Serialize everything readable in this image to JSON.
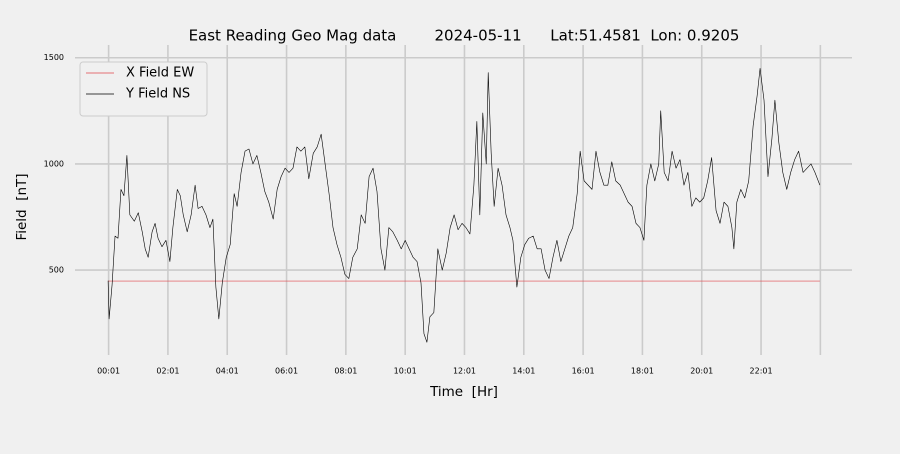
{
  "chart_data": {
    "type": "line",
    "title": "East Reading Geo Mag data        2024-05-11      Lat:51.4581  Lon: 0.9205",
    "x_label": "Time  [Hr]",
    "y_label": "Field  [nT]",
    "xlim": [
      -67,
      1505
    ],
    "ylim": [
      100,
      1560
    ],
    "xticks": [
      {
        "value": 1,
        "label": "00:01"
      },
      {
        "value": 121,
        "label": "02:01"
      },
      {
        "value": 241,
        "label": "04:01"
      },
      {
        "value": 361,
        "label": "06:01"
      },
      {
        "value": 481,
        "label": "08:01"
      },
      {
        "value": 601,
        "label": "10:01"
      },
      {
        "value": 721,
        "label": "12:01"
      },
      {
        "value": 841,
        "label": "14:01"
      },
      {
        "value": 961,
        "label": "16:01"
      },
      {
        "value": 1081,
        "label": "18:01"
      },
      {
        "value": 1201,
        "label": "20:01"
      },
      {
        "value": 1321,
        "label": "22:01"
      },
      {
        "value": 1441,
        "label": null
      }
    ],
    "yticks": [
      500,
      1000,
      1500
    ],
    "grid": true,
    "legend": "upper left",
    "series": [
      {
        "name": "X Field EW",
        "color": "#e0474c",
        "x": [
          0,
          1440
        ],
        "values": [
          448,
          448
        ]
      },
      {
        "name": "Y Field NS",
        "color": "#000000",
        "x": [
          0,
          2,
          8,
          14,
          20,
          26,
          32,
          38,
          44,
          53,
          61,
          69,
          75,
          81,
          89,
          95,
          101,
          109,
          117,
          125,
          131,
          140,
          146,
          152,
          160,
          168,
          176,
          182,
          190,
          198,
          206,
          212,
          218,
          224,
          231,
          239,
          247,
          255,
          261,
          269,
          277,
          285,
          293,
          301,
          309,
          317,
          325,
          334,
          342,
          350,
          358,
          366,
          374,
          382,
          390,
          398,
          406,
          415,
          423,
          431,
          439,
          447,
          455,
          463,
          471,
          479,
          487,
          495,
          504,
          512,
          520,
          528,
          536,
          544,
          552,
          560,
          568,
          576,
          585,
          593,
          601,
          609,
          617,
          625,
          633,
          639,
          645,
          651,
          659,
          667,
          676,
          684,
          692,
          700,
          708,
          716,
          724,
          732,
          740,
          746,
          752,
          758,
          765,
          769,
          775,
          781,
          789,
          797,
          805,
          813,
          819,
          827,
          835,
          843,
          851,
          860,
          868,
          876,
          884,
          892,
          900,
          908,
          916,
          924,
          932,
          940,
          949,
          955,
          963,
          971,
          979,
          987,
          995,
          1003,
          1011,
          1019,
          1027,
          1036,
          1044,
          1052,
          1060,
          1068,
          1076,
          1084,
          1090,
          1098,
          1106,
          1114,
          1118,
          1125,
          1133,
          1141,
          1149,
          1157,
          1165,
          1173,
          1181,
          1189,
          1197,
          1205,
          1213,
          1221,
          1230,
          1238,
          1246,
          1254,
          1262,
          1266,
          1272,
          1280,
          1288,
          1296,
          1305,
          1313,
          1319,
          1327,
          1335,
          1343,
          1349,
          1357,
          1365,
          1373,
          1381,
          1389,
          1397,
          1406,
          1414,
          1422,
          1430,
          1440
        ],
        "values": [
          450,
          270,
          430,
          660,
          650,
          880,
          850,
          1040,
          760,
          730,
          770,
          680,
          600,
          560,
          680,
          720,
          650,
          610,
          640,
          540,
          700,
          880,
          850,
          760,
          680,
          760,
          900,
          790,
          800,
          760,
          700,
          740,
          420,
          270,
          440,
          560,
          620,
          860,
          800,
          960,
          1060,
          1070,
          1000,
          1040,
          960,
          870,
          820,
          740,
          880,
          940,
          980,
          960,
          980,
          1080,
          1060,
          1080,
          930,
          1050,
          1080,
          1140,
          1000,
          860,
          700,
          620,
          560,
          480,
          460,
          560,
          600,
          760,
          720,
          940,
          980,
          870,
          600,
          500,
          700,
          680,
          640,
          600,
          640,
          600,
          560,
          540,
          440,
          200,
          160,
          280,
          300,
          600,
          500,
          580,
          700,
          760,
          690,
          720,
          700,
          670,
          900,
          1200,
          760,
          1240,
          1000,
          1430,
          1050,
          800,
          980,
          900,
          760,
          700,
          640,
          420,
          560,
          620,
          650,
          660,
          600,
          600,
          500,
          460,
          560,
          640,
          540,
          600,
          660,
          700,
          860,
          1060,
          920,
          900,
          880,
          1060,
          960,
          900,
          900,
          1010,
          920,
          900,
          860,
          820,
          800,
          720,
          700,
          640,
          900,
          1000,
          920,
          1000,
          1250,
          960,
          920,
          1060,
          980,
          1020,
          900,
          960,
          800,
          840,
          820,
          840,
          920,
          1030,
          780,
          720,
          820,
          800,
          700,
          600,
          820,
          880,
          840,
          920,
          1180,
          1320,
          1450,
          1300,
          940,
          1120,
          1300,
          1100,
          960,
          880,
          960,
          1020,
          1060,
          960,
          980,
          1000,
          960,
          900
        ]
      }
    ]
  }
}
